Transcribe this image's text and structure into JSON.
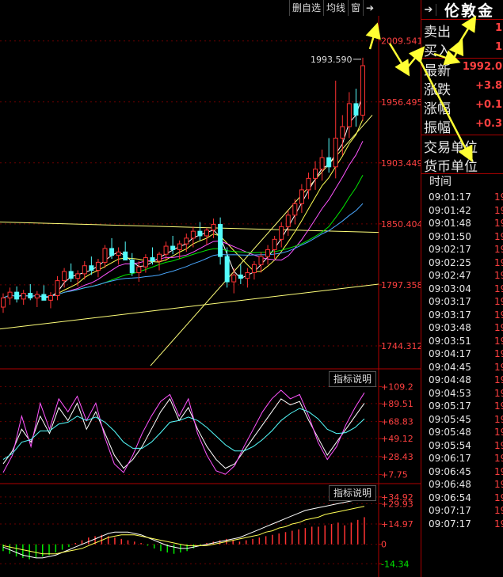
{
  "toolbar": {
    "delete_favorite": "删自选",
    "ma_lines": "均线",
    "window": "窗",
    "pin_icon": "pin-right-icon"
  },
  "indicator_buttons": [
    "指标说明",
    "指标说明"
  ],
  "quote_panel": {
    "title": "伦敦金",
    "rows": [
      {
        "label": "卖出",
        "value": "1"
      },
      {
        "label": "买入",
        "value": "1"
      },
      {
        "label": "最新",
        "value": "1992.0"
      },
      {
        "label": "涨跌",
        "value": "+3.8"
      },
      {
        "label": "涨幅",
        "value": "+0.1"
      },
      {
        "label": "振幅",
        "value": "+0.3"
      },
      {
        "label": "交易单位",
        "value": ""
      },
      {
        "label": "货币单位",
        "value": ""
      }
    ],
    "ticks_header": "时间",
    "ticks": [
      {
        "time": "09:01:17",
        "price": "19"
      },
      {
        "time": "09:01:42",
        "price": "19"
      },
      {
        "time": "09:01:48",
        "price": "19"
      },
      {
        "time": "09:01:50",
        "price": "19"
      },
      {
        "time": "09:02:17",
        "price": "19"
      },
      {
        "time": "09:02:25",
        "price": "19"
      },
      {
        "time": "09:02:47",
        "price": "19"
      },
      {
        "time": "09:03:04",
        "price": "19"
      },
      {
        "time": "09:03:17",
        "price": "19"
      },
      {
        "time": "09:03:17",
        "price": "19"
      },
      {
        "time": "09:03:48",
        "price": "19"
      },
      {
        "time": "09:03:51",
        "price": "19"
      },
      {
        "time": "09:04:17",
        "price": "19"
      },
      {
        "time": "09:04:45",
        "price": "19"
      },
      {
        "time": "09:04:48",
        "price": "19"
      },
      {
        "time": "09:04:53",
        "price": "19"
      },
      {
        "time": "09:05:17",
        "price": "19"
      },
      {
        "time": "09:05:45",
        "price": "19"
      },
      {
        "time": "09:05:48",
        "price": "19"
      },
      {
        "time": "09:05:54",
        "price": "19"
      },
      {
        "time": "09:06:17",
        "price": "19"
      },
      {
        "time": "09:06:45",
        "price": "19"
      },
      {
        "time": "09:06:48",
        "price": "19"
      },
      {
        "time": "09:06:54",
        "price": "19"
      },
      {
        "time": "09:07:17",
        "price": "19"
      },
      {
        "time": "09:07:17",
        "price": "19"
      }
    ]
  },
  "chart_data": [
    {
      "type": "candlestick",
      "yticks": [
        "2009.541",
        "1956.495",
        "1903.449",
        "1850.404",
        "1797.358",
        "1744.312"
      ],
      "ylim": [
        1725,
        2030
      ],
      "last_price_label": "1993.590",
      "colors": {
        "up": "#ff3232",
        "down": "#54fcfc",
        "ma1": "#ffffff",
        "ma2": "#ffff54",
        "ma3": "#ff54ff",
        "ma4": "#00e600",
        "ma5": "#4aa8ff",
        "trendline": "#ffff7a"
      },
      "candles": [
        [
          1778,
          1790,
          1773,
          1786
        ],
        [
          1786,
          1795,
          1780,
          1791
        ],
        [
          1791,
          1796,
          1782,
          1785
        ],
        [
          1785,
          1793,
          1780,
          1790
        ],
        [
          1790,
          1798,
          1784,
          1786
        ],
        [
          1786,
          1792,
          1778,
          1789
        ],
        [
          1789,
          1797,
          1785,
          1784
        ],
        [
          1784,
          1791,
          1777,
          1788
        ],
        [
          1788,
          1805,
          1784,
          1801
        ],
        [
          1801,
          1812,
          1795,
          1809
        ],
        [
          1809,
          1816,
          1800,
          1803
        ],
        [
          1803,
          1810,
          1796,
          1807
        ],
        [
          1807,
          1818,
          1802,
          1814
        ],
        [
          1814,
          1822,
          1806,
          1810
        ],
        [
          1810,
          1820,
          1804,
          1817
        ],
        [
          1817,
          1832,
          1812,
          1829
        ],
        [
          1829,
          1838,
          1820,
          1823
        ],
        [
          1823,
          1830,
          1815,
          1826
        ],
        [
          1826,
          1835,
          1820,
          1819
        ],
        [
          1819,
          1825,
          1805,
          1808
        ],
        [
          1808,
          1818,
          1800,
          1813
        ],
        [
          1813,
          1824,
          1808,
          1821
        ],
        [
          1821,
          1830,
          1815,
          1818
        ],
        [
          1818,
          1826,
          1810,
          1824
        ],
        [
          1824,
          1835,
          1818,
          1831
        ],
        [
          1831,
          1840,
          1824,
          1828
        ],
        [
          1828,
          1836,
          1820,
          1833
        ],
        [
          1833,
          1842,
          1826,
          1838
        ],
        [
          1838,
          1848,
          1830,
          1844
        ],
        [
          1844,
          1852,
          1836,
          1840
        ],
        [
          1840,
          1847,
          1832,
          1845
        ],
        [
          1845,
          1855,
          1838,
          1850
        ],
        [
          1850,
          1856,
          1815,
          1822
        ],
        [
          1822,
          1830,
          1795,
          1800
        ],
        [
          1800,
          1812,
          1790,
          1806
        ],
        [
          1806,
          1815,
          1798,
          1803
        ],
        [
          1803,
          1812,
          1795,
          1808
        ],
        [
          1808,
          1818,
          1802,
          1815
        ],
        [
          1815,
          1826,
          1808,
          1822
        ],
        [
          1822,
          1832,
          1815,
          1828
        ],
        [
          1828,
          1840,
          1820,
          1837
        ],
        [
          1837,
          1852,
          1830,
          1848
        ],
        [
          1848,
          1862,
          1840,
          1858
        ],
        [
          1858,
          1872,
          1850,
          1868
        ],
        [
          1868,
          1885,
          1860,
          1880
        ],
        [
          1880,
          1895,
          1872,
          1890
        ],
        [
          1890,
          1905,
          1880,
          1898
        ],
        [
          1898,
          1915,
          1888,
          1908
        ],
        [
          1908,
          1925,
          1895,
          1900
        ],
        [
          1900,
          1975,
          1890,
          1925
        ],
        [
          1925,
          1945,
          1910,
          1935
        ],
        [
          1935,
          1965,
          1925,
          1955
        ],
        [
          1955,
          1968,
          1935,
          1945
        ],
        [
          1945,
          1995,
          1940,
          1988
        ]
      ]
    },
    {
      "type": "line",
      "yticks": [
        "+109.2",
        "+89.51",
        "+68.83",
        "+49.12",
        "+28.43",
        "+7.75"
      ],
      "ylim": [
        0,
        115
      ],
      "series": [
        {
          "color": "#ffffff",
          "values": [
            20,
            35,
            60,
            45,
            75,
            55,
            85,
            70,
            90,
            60,
            80,
            55,
            30,
            15,
            25,
            40,
            60,
            80,
            95,
            70,
            85,
            60,
            40,
            25,
            15,
            20,
            35,
            50,
            65,
            80,
            95,
            88,
            92,
            70,
            50,
            30,
            45,
            60,
            75,
            90
          ]
        },
        {
          "color": "#ff54ff",
          "values": [
            10,
            30,
            75,
            40,
            90,
            60,
            95,
            80,
            98,
            70,
            90,
            50,
            20,
            10,
            30,
            55,
            75,
            92,
            100,
            75,
            95,
            55,
            30,
            12,
            8,
            18,
            40,
            60,
            80,
            95,
            105,
            95,
            100,
            75,
            45,
            25,
            40,
            65,
            85,
            102
          ]
        },
        {
          "color": "#54fcfc",
          "values": [
            25,
            32,
            45,
            48,
            58,
            58,
            66,
            68,
            75,
            70,
            74,
            68,
            58,
            45,
            38,
            38,
            45,
            56,
            68,
            70,
            74,
            70,
            62,
            52,
            42,
            35,
            35,
            40,
            48,
            58,
            70,
            78,
            84,
            80,
            72,
            60,
            55,
            56,
            62,
            72
          ]
        }
      ]
    },
    {
      "type": "bar",
      "yticks": [
        "+34.92",
        "+29.93",
        "+14.97",
        "0",
        "-14.34"
      ],
      "ylim": [
        -20,
        36
      ],
      "bars": [
        -5,
        -7,
        -9,
        -10,
        -11,
        -10,
        -9,
        -8,
        -6,
        -4,
        -2,
        1,
        3,
        5,
        6,
        7,
        6,
        5,
        4,
        3,
        2,
        1,
        -1,
        -3,
        -5,
        -6,
        -7,
        -6,
        -5,
        -3,
        -1,
        1,
        2,
        3,
        4,
        3,
        2,
        3,
        4,
        5,
        6,
        7,
        8,
        9,
        10,
        11,
        12,
        13,
        13,
        14,
        15,
        16,
        14,
        16,
        18,
        20
      ],
      "series": [
        {
          "color": "#ffffff",
          "values": [
            -2,
            -4,
            -6,
            -8,
            -9,
            -10,
            -10,
            -9,
            -8,
            -6,
            -4,
            -2,
            0,
            2,
            4,
            6,
            8,
            9,
            9,
            9,
            8,
            7,
            5,
            3,
            1,
            -1,
            -2,
            -3,
            -3,
            -2,
            -1,
            0,
            1,
            2,
            3,
            4,
            5,
            7,
            9,
            11,
            13,
            15,
            17,
            19,
            21,
            23,
            25,
            26,
            27,
            28,
            29,
            30,
            31,
            32,
            33,
            35
          ]
        },
        {
          "color": "#ffff54",
          "values": [
            -1,
            -2,
            -3,
            -4,
            -5,
            -6,
            -7,
            -7,
            -7,
            -6,
            -5,
            -4,
            -3,
            -1,
            1,
            3,
            5,
            6,
            7,
            7,
            7,
            6,
            5,
            4,
            3,
            2,
            1,
            0,
            -1,
            -1,
            -1,
            -1,
            0,
            1,
            2,
            3,
            4,
            5,
            6,
            7,
            9,
            10,
            12,
            13,
            15,
            16,
            18,
            19,
            20,
            22,
            23,
            24,
            25,
            26,
            27,
            28
          ]
        }
      ]
    }
  ]
}
